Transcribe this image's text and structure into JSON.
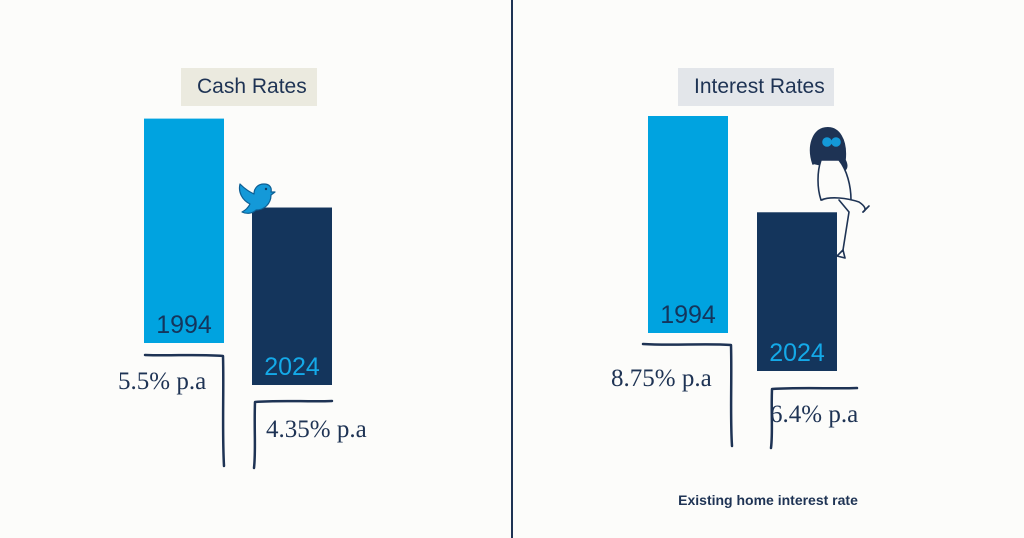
{
  "chart_data": [
    {
      "type": "bar",
      "title": "Cash Rates",
      "categories": [
        "1994",
        "2024"
      ],
      "values": [
        5.5,
        4.35
      ],
      "value_labels": [
        "5.5% p.a",
        "4.35% p.a"
      ],
      "colors": [
        "#00a3e0",
        "#14355c"
      ],
      "label_colors": [
        "#14355c",
        "#14a9e8"
      ],
      "grid": false,
      "legend": "none"
    },
    {
      "type": "bar",
      "title": "Interest Rates",
      "categories": [
        "1994",
        "2024"
      ],
      "values": [
        8.75,
        6.4
      ],
      "value_labels": [
        "8.75% p.a",
        "6.4% p.a"
      ],
      "colors": [
        "#00a3e0",
        "#14355c"
      ],
      "label_colors": [
        "#14355c",
        "#14a9e8"
      ],
      "grid": false,
      "legend": "none",
      "footnote": "Existing home interest rate"
    }
  ],
  "decorations": {
    "left": "bird-illustration",
    "right": "seated-woman-illustration"
  }
}
